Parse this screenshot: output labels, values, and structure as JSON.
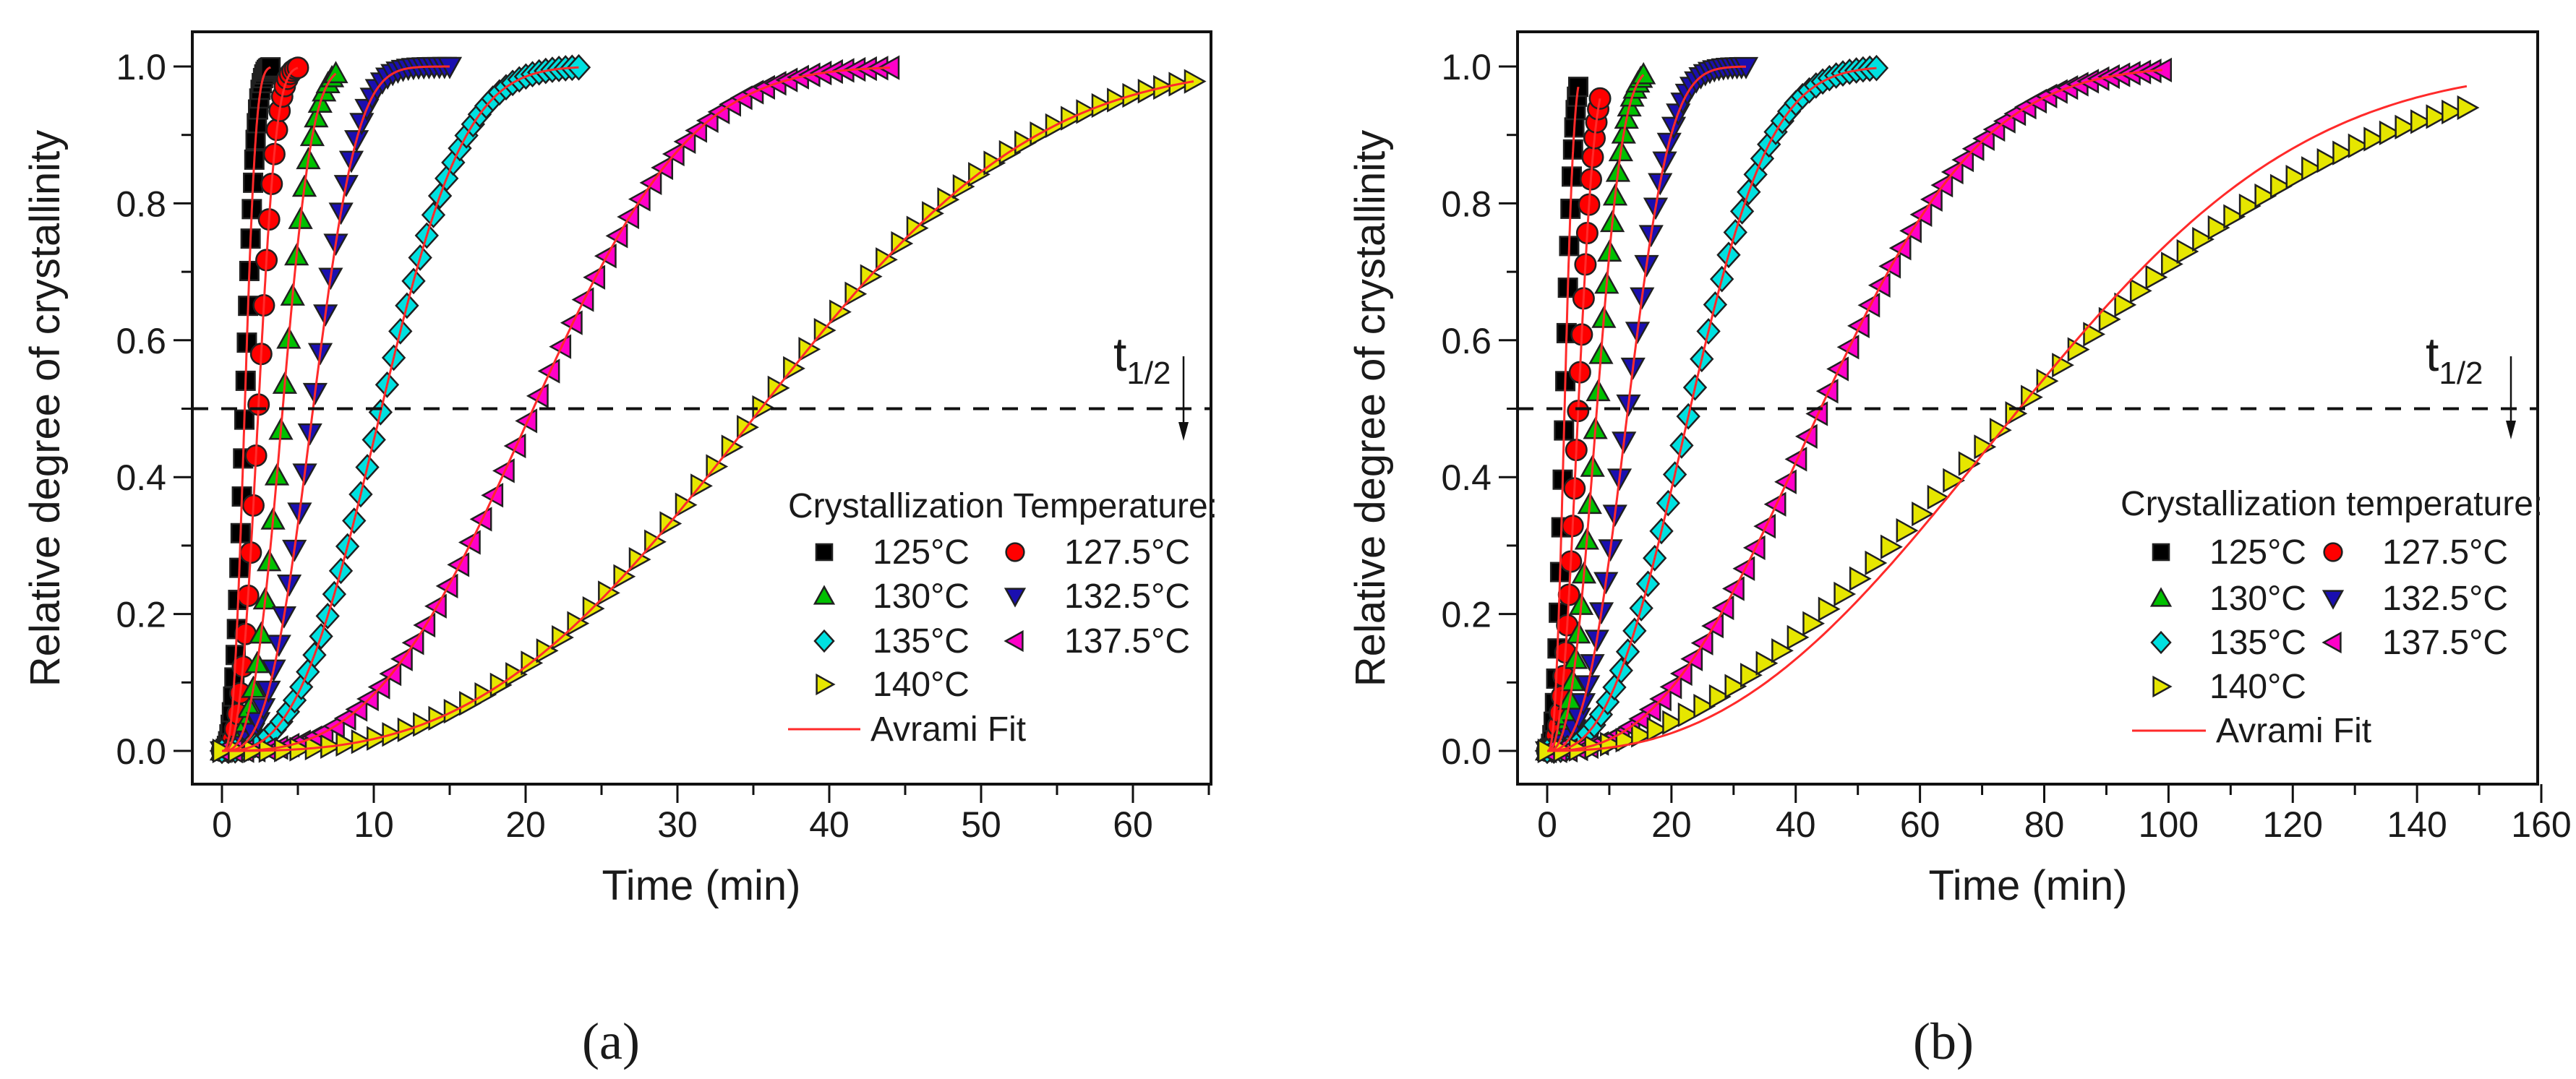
{
  "chart_data": [
    {
      "type": "scatter",
      "panel_caption": "(a)",
      "xlabel": "Time (min)",
      "ylabel": "Relative degree of crystallinity",
      "xlim": [
        -2,
        65
      ],
      "ylim": [
        -0.05,
        1.05
      ],
      "x_ticks": [
        "0",
        "10",
        "20",
        "30",
        "40",
        "50",
        "60"
      ],
      "x_tick_values": [
        0,
        10,
        20,
        30,
        40,
        50,
        60
      ],
      "x_minor_step": 5,
      "y_ticks": [
        "0.0",
        "0.2",
        "0.4",
        "0.6",
        "0.8",
        "1.0"
      ],
      "y_tick_values": [
        0,
        0.2,
        0.4,
        0.6,
        0.8,
        1.0
      ],
      "y_minor_step": 0.1,
      "reference_line": {
        "y": 0.5,
        "style": "dashed"
      },
      "annotation": {
        "main": "t",
        "sub": "1/2"
      },
      "legend": {
        "title": "Crystallization Temperature:",
        "fit_label": "Avrami Fit",
        "placement": "bottom-right"
      },
      "fit_color": "#ff2a2a",
      "series": [
        {
          "name": "125°C",
          "marker": "square",
          "color": "#000000",
          "t_half": 1.5,
          "n": 3.0,
          "t_end": 3.2,
          "points": 40,
          "fit_n": 3.0
        },
        {
          "name": "127.5°C",
          "marker": "circle",
          "color": "#ff0000",
          "t_half": 2.4,
          "n": 3.0,
          "t_end": 5.0,
          "points": 30,
          "fit_n": 3.0
        },
        {
          "name": "130°C",
          "marker": "triangle-up",
          "color": "#00c000",
          "t_half": 4.0,
          "n": 3.0,
          "t_end": 7.5,
          "points": 30,
          "fit_n": 3.0
        },
        {
          "name": "132.5°C",
          "marker": "triangle-down",
          "color": "#1a0fb0",
          "t_half": 6.0,
          "n": 3.0,
          "t_end": 15.0,
          "points": 45,
          "fit_n": 3.0
        },
        {
          "name": "135°C",
          "marker": "diamond",
          "color": "#00e0e0",
          "t_half": 10.5,
          "n": 2.8,
          "t_end": 23.5,
          "points": 55,
          "fit_n": 2.8
        },
        {
          "name": "137.5°C",
          "marker": "triangle-left",
          "color": "#ff00c8",
          "t_half": 20.5,
          "n": 2.9,
          "t_end": 44.0,
          "points": 60,
          "fit_n": 2.9
        },
        {
          "name": "140°C",
          "marker": "triangle-right",
          "color": "#e6e600",
          "t_half": 35.5,
          "n": 2.9,
          "t_end": 64.0,
          "points": 64,
          "fit_n": 2.9
        }
      ]
    },
    {
      "type": "scatter",
      "panel_caption": "(b)",
      "xlabel": "Time (min)",
      "ylabel": "Relative degree of crystallinity",
      "xlim": [
        -5,
        160
      ],
      "ylim": [
        -0.05,
        1.05
      ],
      "x_ticks": [
        "0",
        "20",
        "40",
        "60",
        "80",
        "100",
        "120",
        "140",
        "160"
      ],
      "x_tick_values": [
        0,
        20,
        40,
        60,
        80,
        100,
        120,
        140,
        160
      ],
      "x_minor_step": 10,
      "y_ticks": [
        "0.0",
        "0.2",
        "0.4",
        "0.6",
        "0.8",
        "1.0"
      ],
      "y_tick_values": [
        0,
        0.2,
        0.4,
        0.6,
        0.8,
        1.0
      ],
      "y_minor_step": 0.1,
      "reference_line": {
        "y": 0.5,
        "style": "dashed"
      },
      "annotation": {
        "main": "t",
        "sub": "1/2"
      },
      "legend": {
        "title": "Crystallization temperature:",
        "fit_label": "Avrami Fit",
        "placement": "bottom-right"
      },
      "fit_color": "#ff2a2a",
      "series": [
        {
          "name": "125°C",
          "marker": "square",
          "color": "#000000",
          "t_half": 2.8,
          "n": 2.8,
          "t_end": 5.0,
          "points": 25,
          "fit_n": 2.8
        },
        {
          "name": "127.5°C",
          "marker": "circle",
          "color": "#ff0000",
          "t_half": 5.0,
          "n": 2.8,
          "t_end": 8.5,
          "points": 30,
          "fit_n": 2.8
        },
        {
          "name": "130°C",
          "marker": "triangle-up",
          "color": "#00c000",
          "t_half": 8.0,
          "n": 2.8,
          "t_end": 15.5,
          "points": 35,
          "fit_n": 2.8
        },
        {
          "name": "132.5°C",
          "marker": "triangle-down",
          "color": "#1a0fb0",
          "t_half": 13.0,
          "n": 2.8,
          "t_end": 32.0,
          "points": 45,
          "fit_n": 2.8
        },
        {
          "name": "135°C",
          "marker": "diamond",
          "color": "#00e0e0",
          "t_half": 23.0,
          "n": 2.6,
          "t_end": 53.0,
          "points": 50,
          "fit_n": 2.6
        },
        {
          "name": "137.5°C",
          "marker": "triangle-left",
          "color": "#ff00c8",
          "t_half": 44.0,
          "n": 2.5,
          "t_end": 99.0,
          "points": 60,
          "fit_n": 2.5
        },
        {
          "name": "140°C",
          "marker": "triangle-right",
          "color": "#e6e600",
          "t_half": 76.0,
          "n": 2.1,
          "t_end": 148.0,
          "points": 60,
          "fit_n": 2.45
        }
      ]
    }
  ]
}
